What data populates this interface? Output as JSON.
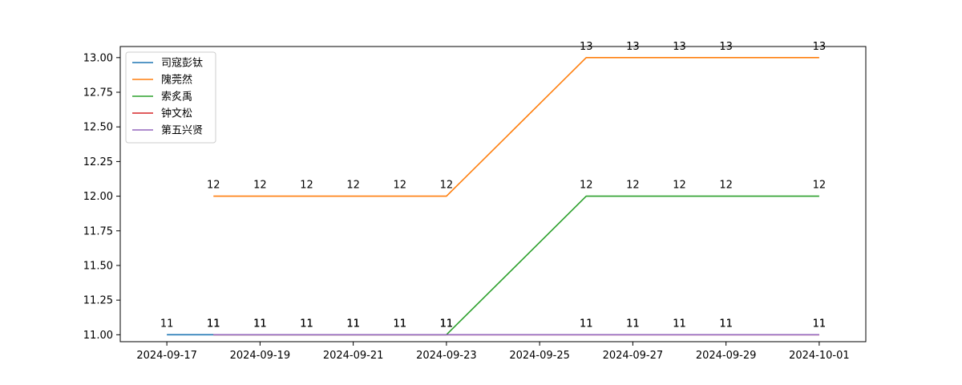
{
  "chart_data": {
    "type": "line",
    "title": "",
    "xlabel": "",
    "ylabel": "",
    "xlim": [
      "2024-09-16",
      "2024-10-02"
    ],
    "ylim": [
      10.95,
      13.08
    ],
    "x_ticks": [
      "2024-09-17",
      "2024-09-19",
      "2024-09-21",
      "2024-09-23",
      "2024-09-25",
      "2024-09-27",
      "2024-09-29",
      "2024-10-01"
    ],
    "y_ticks": [
      "11.00",
      "11.25",
      "11.50",
      "11.75",
      "12.00",
      "12.25",
      "12.50",
      "12.75",
      "13.00"
    ],
    "grid": false,
    "legend_position": "top-left",
    "series": [
      {
        "name": "司寇彭钛",
        "color": "#1f77b4",
        "points": [
          {
            "x": "2024-09-17",
            "y": 11,
            "label": "11"
          },
          {
            "x": "2024-09-18",
            "y": 11,
            "label": "11"
          }
        ]
      },
      {
        "name": "隗莞然",
        "color": "#ff7f0e",
        "points": [
          {
            "x": "2024-09-18",
            "y": 12,
            "label": "12"
          },
          {
            "x": "2024-09-19",
            "y": 12,
            "label": "12"
          },
          {
            "x": "2024-09-20",
            "y": 12,
            "label": "12"
          },
          {
            "x": "2024-09-21",
            "y": 12,
            "label": "12"
          },
          {
            "x": "2024-09-22",
            "y": 12,
            "label": "12"
          },
          {
            "x": "2024-09-23",
            "y": 12,
            "label": "12"
          },
          {
            "x": "2024-09-26",
            "y": 13,
            "label": "13"
          },
          {
            "x": "2024-09-27",
            "y": 13,
            "label": "13"
          },
          {
            "x": "2024-09-28",
            "y": 13,
            "label": "13"
          },
          {
            "x": "2024-09-29",
            "y": 13,
            "label": "13"
          },
          {
            "x": "2024-10-01",
            "y": 13,
            "label": "13"
          }
        ]
      },
      {
        "name": "索炙禹",
        "color": "#2ca02c",
        "points": [
          {
            "x": "2024-09-18",
            "y": 11,
            "label": "11"
          },
          {
            "x": "2024-09-19",
            "y": 11,
            "label": "11"
          },
          {
            "x": "2024-09-20",
            "y": 11,
            "label": "11"
          },
          {
            "x": "2024-09-21",
            "y": 11,
            "label": "11"
          },
          {
            "x": "2024-09-22",
            "y": 11,
            "label": "11"
          },
          {
            "x": "2024-09-23",
            "y": 11,
            "label": "11"
          },
          {
            "x": "2024-09-26",
            "y": 12,
            "label": "12"
          },
          {
            "x": "2024-09-27",
            "y": 12,
            "label": "12"
          },
          {
            "x": "2024-09-28",
            "y": 12,
            "label": "12"
          },
          {
            "x": "2024-09-29",
            "y": 12,
            "label": "12"
          },
          {
            "x": "2024-10-01",
            "y": 12,
            "label": "12"
          }
        ]
      },
      {
        "name": "钟文松",
        "color": "#d62728",
        "points": [
          {
            "x": "2024-09-18",
            "y": 11,
            "label": "11"
          },
          {
            "x": "2024-09-19",
            "y": 11,
            "label": "11"
          },
          {
            "x": "2024-09-20",
            "y": 11,
            "label": "11"
          },
          {
            "x": "2024-09-21",
            "y": 11,
            "label": "11"
          },
          {
            "x": "2024-09-22",
            "y": 11,
            "label": "11"
          },
          {
            "x": "2024-09-23",
            "y": 11,
            "label": "11"
          },
          {
            "x": "2024-09-26",
            "y": 11,
            "label": "11"
          },
          {
            "x": "2024-09-27",
            "y": 11,
            "label": "11"
          },
          {
            "x": "2024-09-28",
            "y": 11,
            "label": "11"
          },
          {
            "x": "2024-09-29",
            "y": 11,
            "label": "11"
          },
          {
            "x": "2024-10-01",
            "y": 11,
            "label": "11"
          }
        ]
      },
      {
        "name": "第五兴贤",
        "color": "#9467bd",
        "points": [
          {
            "x": "2024-09-18",
            "y": 11,
            "label": "11"
          },
          {
            "x": "2024-09-19",
            "y": 11,
            "label": "11"
          },
          {
            "x": "2024-09-20",
            "y": 11,
            "label": "11"
          },
          {
            "x": "2024-09-21",
            "y": 11,
            "label": "11"
          },
          {
            "x": "2024-09-22",
            "y": 11,
            "label": "11"
          },
          {
            "x": "2024-09-23",
            "y": 11,
            "label": "11"
          },
          {
            "x": "2024-09-26",
            "y": 11,
            "label": "11"
          },
          {
            "x": "2024-09-27",
            "y": 11,
            "label": "11"
          },
          {
            "x": "2024-09-28",
            "y": 11,
            "label": "11"
          },
          {
            "x": "2024-09-29",
            "y": 11,
            "label": "11"
          },
          {
            "x": "2024-10-01",
            "y": 11,
            "label": "11"
          }
        ]
      }
    ]
  }
}
